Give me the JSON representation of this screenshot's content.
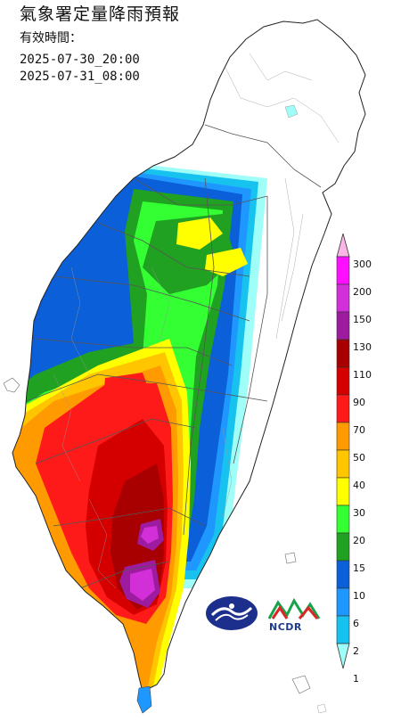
{
  "title": "氣象署定量降雨預報",
  "valid_label": "有效時間：",
  "valid_start": "2025-07-30_20:00",
  "valid_end": "2025-07-31_08:00",
  "legend": {
    "levels": [
      "300",
      "200",
      "150",
      "130",
      "110",
      "90",
      "70",
      "50",
      "40",
      "30",
      "20",
      "15",
      "10",
      "6",
      "2",
      "1"
    ],
    "colors": [
      "#fbb5e6",
      "#ff0fff",
      "#d22fd8",
      "#9c1b9e",
      "#a80000",
      "#d40000",
      "#ff1a1a",
      "#ff9b00",
      "#ffc600",
      "#ffff00",
      "#33ff33",
      "#21a121",
      "#0b5fd8",
      "#1e97ff",
      "#18c2ef",
      "#9ffef7"
    ]
  },
  "logos": {
    "cwa": "cwa-logo",
    "ncdr": "NCDR"
  },
  "rain_colors": {
    "none": "#ffffff",
    "lv1": "#9ffef7",
    "lv2": "#18c2ef",
    "lv6": "#1e97ff",
    "lv10": "#0b5fd8",
    "lv15": "#21a121",
    "lv20": "#33ff33",
    "lv30": "#ffff00",
    "lv40": "#ffc600",
    "lv50": "#ff9b00",
    "lv70": "#ff1a1a",
    "lv90": "#d40000",
    "lv110": "#a80000",
    "lv130": "#9c1b9e",
    "lv150": "#d22fd8"
  }
}
